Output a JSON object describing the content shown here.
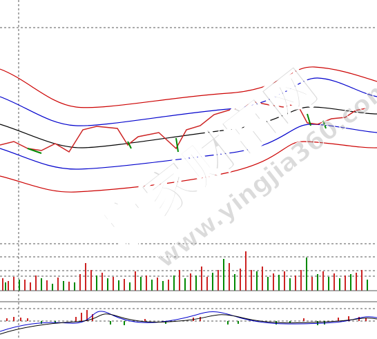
{
  "watermark": {
    "brand": "赢家财富网",
    "url": "www.yingjia360.com"
  }
}
